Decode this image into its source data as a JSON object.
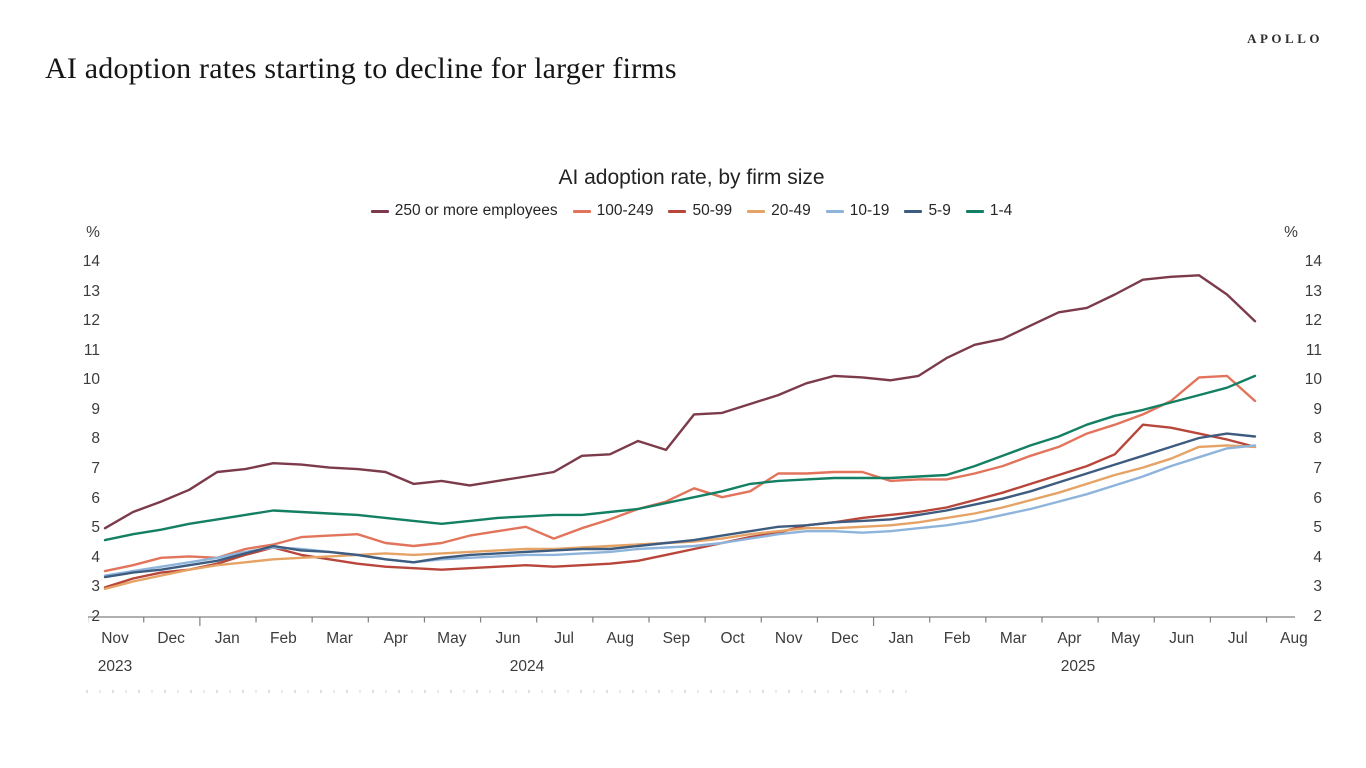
{
  "branding": {
    "logo": "APOLLO"
  },
  "page_title": "AI adoption rates starting to decline for larger firms",
  "chart_data": {
    "type": "line",
    "title": "AI adoption rate, by firm size",
    "ylabel": "%",
    "ylim": [
      2,
      14
    ],
    "y_ticks": [
      14,
      13,
      12,
      11,
      10,
      9,
      8,
      7,
      6,
      5,
      4,
      3,
      2
    ],
    "grid": false,
    "legend_position": "top",
    "x_month_labels": [
      "Nov",
      "Dec",
      "Jan",
      "Feb",
      "Mar",
      "Apr",
      "May",
      "Jun",
      "Jul",
      "Aug",
      "Sep",
      "Oct",
      "Nov",
      "Dec",
      "Jan",
      "Feb",
      "Mar",
      "Apr",
      "May",
      "Jun",
      "Jul",
      "Aug"
    ],
    "x_years": [
      {
        "label": "2023",
        "x": 115
      },
      {
        "label": "2024",
        "x": 527
      },
      {
        "label": "2025",
        "x": 1078
      }
    ],
    "x_dates": [
      "2023-11-01",
      "2023-11-15",
      "2023-12-01",
      "2023-12-15",
      "2024-01-01",
      "2024-01-15",
      "2024-02-01",
      "2024-02-15",
      "2024-03-01",
      "2024-03-15",
      "2024-04-01",
      "2024-04-15",
      "2024-05-01",
      "2024-05-15",
      "2024-06-01",
      "2024-06-15",
      "2024-07-01",
      "2024-07-15",
      "2024-08-01",
      "2024-08-15",
      "2024-09-01",
      "2024-09-15",
      "2024-10-01",
      "2024-10-15",
      "2024-11-01",
      "2024-11-15",
      "2024-12-01",
      "2024-12-15",
      "2025-01-01",
      "2025-01-15",
      "2025-02-01",
      "2025-02-15",
      "2025-03-01",
      "2025-03-15",
      "2025-04-01",
      "2025-04-15",
      "2025-05-01",
      "2025-05-15",
      "2025-06-01",
      "2025-06-15",
      "2025-07-01",
      "2025-07-15"
    ],
    "series": [
      {
        "name": "250 or more employees",
        "color": "#7b3b4b",
        "values": [
          5.0,
          5.55,
          5.9,
          6.3,
          6.9,
          7.0,
          7.2,
          7.15,
          7.05,
          7.0,
          6.9,
          6.5,
          6.6,
          6.45,
          6.6,
          6.75,
          6.9,
          7.45,
          7.5,
          7.95,
          7.65,
          8.85,
          8.9,
          9.2,
          9.5,
          9.9,
          10.15,
          10.1,
          10.0,
          10.15,
          10.75,
          11.2,
          11.4,
          11.85,
          12.3,
          12.45,
          12.9,
          13.4,
          13.5,
          13.55,
          12.9,
          12.0
        ]
      },
      {
        "name": "100-249",
        "color": "#e2745c",
        "values": [
          3.55,
          3.75,
          4.0,
          4.05,
          4.0,
          4.3,
          4.45,
          4.7,
          4.75,
          4.8,
          4.5,
          4.4,
          4.5,
          4.75,
          4.9,
          5.05,
          4.65,
          5.0,
          5.3,
          5.65,
          5.9,
          6.35,
          6.05,
          6.25,
          6.85,
          6.85,
          6.9,
          6.9,
          6.6,
          6.65,
          6.65,
          6.85,
          7.1,
          7.45,
          7.75,
          8.2,
          8.5,
          8.85,
          9.3,
          10.1,
          10.15,
          9.3
        ]
      },
      {
        "name": "50-99",
        "color": "#b8463b",
        "values": [
          3.0,
          3.3,
          3.5,
          3.6,
          3.8,
          4.1,
          4.35,
          4.1,
          3.95,
          3.8,
          3.7,
          3.65,
          3.6,
          3.65,
          3.7,
          3.75,
          3.7,
          3.75,
          3.8,
          3.9,
          4.1,
          4.3,
          4.5,
          4.7,
          4.85,
          5.1,
          5.2,
          5.35,
          5.45,
          5.55,
          5.7,
          5.95,
          6.2,
          6.5,
          6.8,
          7.1,
          7.5,
          8.5,
          8.4,
          8.2,
          8.0,
          7.75
        ]
      },
      {
        "name": "20-49",
        "color": "#e5a366",
        "values": [
          2.95,
          3.2,
          3.4,
          3.6,
          3.75,
          3.85,
          3.95,
          4.0,
          4.05,
          4.1,
          4.15,
          4.1,
          4.15,
          4.2,
          4.25,
          4.3,
          4.3,
          4.35,
          4.4,
          4.45,
          4.5,
          4.55,
          4.65,
          4.8,
          4.9,
          5.0,
          5.0,
          5.05,
          5.1,
          5.2,
          5.35,
          5.5,
          5.7,
          5.95,
          6.2,
          6.5,
          6.8,
          7.05,
          7.35,
          7.75,
          7.8,
          7.75
        ]
      },
      {
        "name": "10-19",
        "color": "#8eb4dc",
        "values": [
          3.4,
          3.55,
          3.7,
          3.85,
          4.0,
          4.2,
          4.35,
          4.3,
          4.2,
          4.1,
          3.95,
          3.85,
          3.95,
          4.0,
          4.05,
          4.1,
          4.1,
          4.15,
          4.2,
          4.3,
          4.35,
          4.4,
          4.5,
          4.65,
          4.8,
          4.9,
          4.9,
          4.85,
          4.9,
          5.0,
          5.1,
          5.25,
          5.45,
          5.65,
          5.9,
          6.15,
          6.45,
          6.75,
          7.1,
          7.4,
          7.7,
          7.8
        ]
      },
      {
        "name": "5-9",
        "color": "#3e5c7f",
        "values": [
          3.35,
          3.5,
          3.6,
          3.75,
          3.9,
          4.15,
          4.4,
          4.25,
          4.2,
          4.1,
          3.95,
          3.85,
          4.0,
          4.1,
          4.15,
          4.2,
          4.25,
          4.3,
          4.3,
          4.4,
          4.5,
          4.6,
          4.75,
          4.9,
          5.05,
          5.1,
          5.2,
          5.25,
          5.3,
          5.45,
          5.6,
          5.8,
          6.0,
          6.25,
          6.55,
          6.85,
          7.15,
          7.45,
          7.75,
          8.05,
          8.2,
          8.1
        ]
      },
      {
        "name": "1-4",
        "color": "#137f63",
        "values": [
          4.6,
          4.8,
          4.95,
          5.15,
          5.3,
          5.45,
          5.6,
          5.55,
          5.5,
          5.45,
          5.35,
          5.25,
          5.15,
          5.25,
          5.35,
          5.4,
          5.45,
          5.45,
          5.55,
          5.65,
          5.85,
          6.05,
          6.25,
          6.5,
          6.6,
          6.65,
          6.7,
          6.7,
          6.7,
          6.75,
          6.8,
          7.1,
          7.45,
          7.8,
          8.1,
          8.5,
          8.8,
          9.0,
          9.25,
          9.5,
          9.75,
          10.15
        ]
      }
    ],
    "axis_color": "#808080",
    "label_color": "#3c3c3c"
  }
}
